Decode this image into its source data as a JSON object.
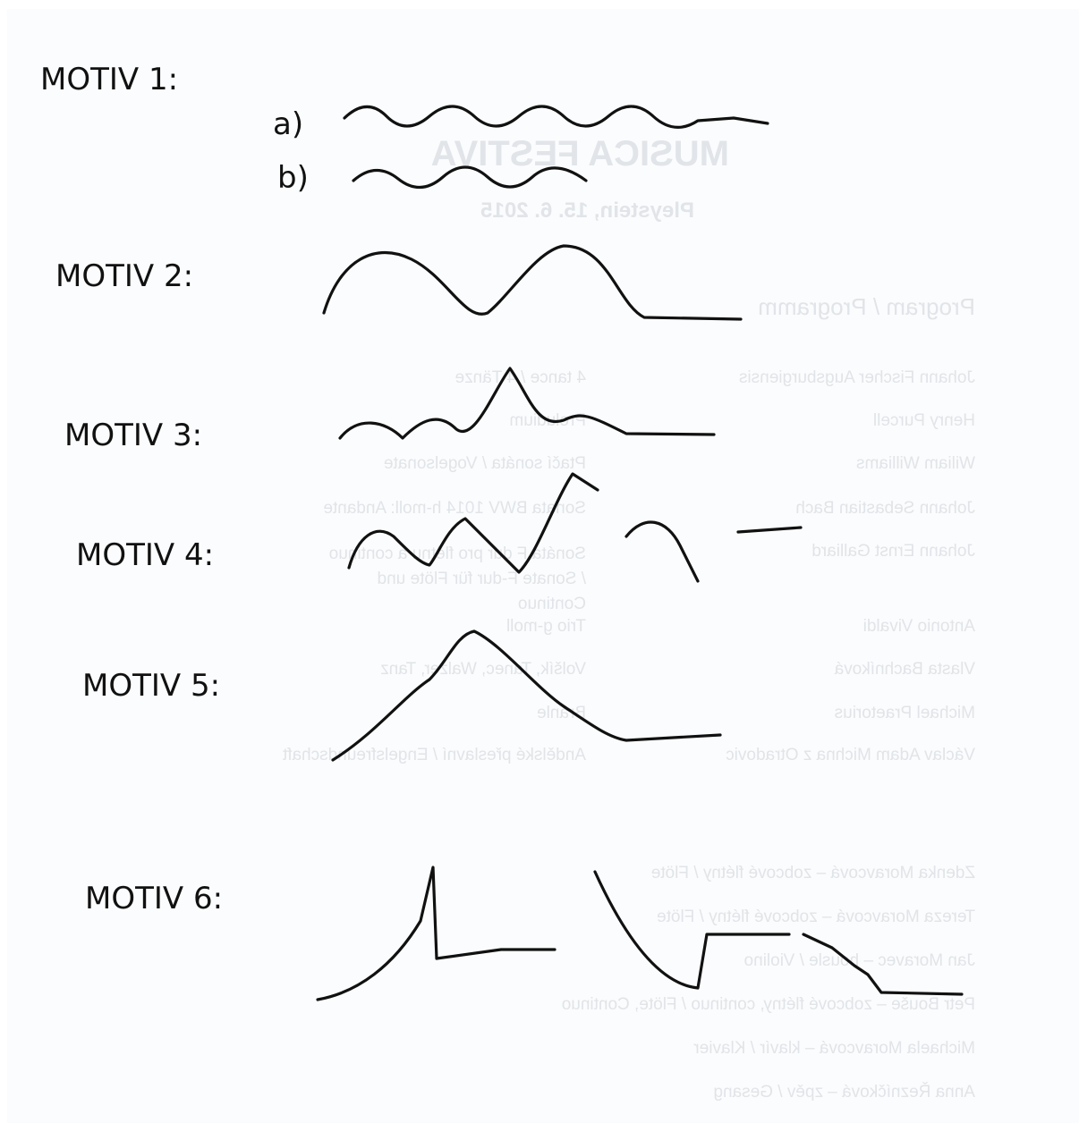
{
  "motifs": [
    "MOTIV 1:",
    "MOTIV 2:",
    "MOTIV 3:",
    "MOTIV 4:",
    "MOTIV 5:",
    "MOTIV 6:"
  ],
  "sub_labels": [
    "a)",
    "b)"
  ],
  "bleed_through": {
    "title": "MUSICA FESTIVA",
    "subtitle": "Pleystein, 15. 6. 2015",
    "program_heading": "Program / Programm",
    "program": [
      {
        "composer": "Johann Fischer Augsburgiensis",
        "piece": "4 tance / 4 Tänze"
      },
      {
        "composer": "Henry Purcell",
        "piece": "Preludium"
      },
      {
        "composer": "Wiliam Williams",
        "piece": "Ptačí sonáta / Vogelsonate"
      },
      {
        "composer": "Johann Sebastian Bach",
        "piece": "Sonata BWV 1014 h-moll: Andante"
      },
      {
        "composer": "Johann Ernst Galliard",
        "piece": "Sonáta F dur pro flétnu a continuo / Sonate F-dur für Flöte und Continuo"
      },
      {
        "composer": "Antonio Vivaldi",
        "piece": "Trio g-moll"
      },
      {
        "composer": "Vlasta Bachníková",
        "piece": "Volšík, Tanec, Walzer, Tanz"
      },
      {
        "composer": "Michael Praetorius",
        "piece": "Branle"
      },
      {
        "composer": "Václav Adam Michna z Otradovic",
        "piece": "Andělské přeslavní / Engelsfreundschaft"
      }
    ],
    "performers": [
      "Zdenka Moravcová – zobcové flétny / Flöte",
      "Tereza Moravcová – zobcové flétny / Flöte",
      "Jan Moravec – housle / Violino",
      "Petr Bouše – zobcové flétny, continuo / Flöte, Continuo",
      "Michaela Moravcová – klavír / Klavier",
      "Anna Řezníčková – zpěv / Gesang"
    ]
  }
}
